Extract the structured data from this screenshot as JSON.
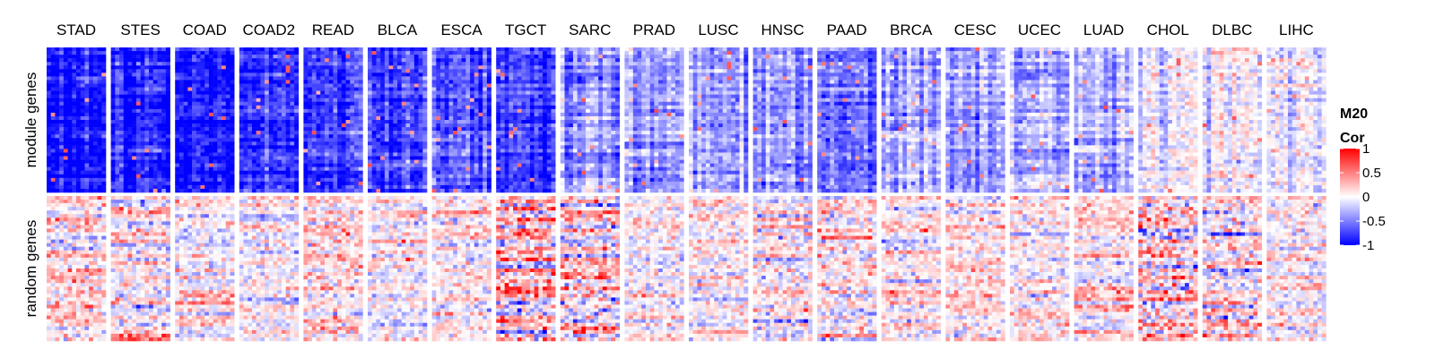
{
  "chart_data": {
    "type": "heatmap",
    "row_groups": [
      "module genes",
      "random genes"
    ],
    "columns": [
      {
        "name": "STAD",
        "module_mean": -0.95,
        "random_mean": 0.05,
        "random_spread": 0.3
      },
      {
        "name": "STES",
        "module_mean": -0.85,
        "random_mean": 0.05,
        "random_spread": 0.3
      },
      {
        "name": "COAD",
        "module_mean": -0.92,
        "random_mean": 0.02,
        "random_spread": 0.25
      },
      {
        "name": "COAD2",
        "module_mean": -0.88,
        "random_mean": 0.02,
        "random_spread": 0.25
      },
      {
        "name": "READ",
        "module_mean": -0.75,
        "random_mean": 0.1,
        "random_spread": 0.3
      },
      {
        "name": "BLCA",
        "module_mean": -0.72,
        "random_mean": 0.05,
        "random_spread": 0.25
      },
      {
        "name": "ESCA",
        "module_mean": -0.62,
        "random_mean": 0.05,
        "random_spread": 0.25
      },
      {
        "name": "TGCT",
        "module_mean": -0.7,
        "random_mean": 0.1,
        "random_spread": 0.45
      },
      {
        "name": "SARC",
        "module_mean": -0.45,
        "random_mean": 0.1,
        "random_spread": 0.4
      },
      {
        "name": "PRAD",
        "module_mean": -0.4,
        "random_mean": 0.05,
        "random_spread": 0.25
      },
      {
        "name": "LUSC",
        "module_mean": -0.42,
        "random_mean": 0.05,
        "random_spread": 0.25
      },
      {
        "name": "HNSC",
        "module_mean": -0.4,
        "random_mean": 0.05,
        "random_spread": 0.3
      },
      {
        "name": "PAAD",
        "module_mean": -0.55,
        "random_mean": 0.05,
        "random_spread": 0.3
      },
      {
        "name": "BRCA",
        "module_mean": -0.35,
        "random_mean": 0.05,
        "random_spread": 0.25
      },
      {
        "name": "CESC",
        "module_mean": -0.35,
        "random_mean": 0.05,
        "random_spread": 0.25
      },
      {
        "name": "UCEC",
        "module_mean": -0.3,
        "random_mean": 0.05,
        "random_spread": 0.25
      },
      {
        "name": "LUAD",
        "module_mean": -0.3,
        "random_mean": 0.05,
        "random_spread": 0.25
      },
      {
        "name": "CHOL",
        "module_mean": -0.05,
        "random_mean": 0.15,
        "random_spread": 0.45
      },
      {
        "name": "DLBC",
        "module_mean": -0.05,
        "random_mean": 0.1,
        "random_spread": 0.35
      },
      {
        "name": "LIHC",
        "module_mean": -0.1,
        "random_mean": 0.05,
        "random_spread": 0.25
      }
    ],
    "legend": {
      "title_line1": "M20",
      "title_line2": "Cor",
      "ticks": [
        {
          "value": 1,
          "label": "1"
        },
        {
          "value": 0.5,
          "label": "0.5"
        },
        {
          "value": 0,
          "label": "0"
        },
        {
          "value": -0.5,
          "label": "-0.5"
        },
        {
          "value": -1,
          "label": "-1"
        }
      ],
      "colors": {
        "low": "#0000ff",
        "mid": "#ffffff",
        "high": "#ff0000"
      },
      "range": [
        -1,
        1
      ]
    }
  }
}
